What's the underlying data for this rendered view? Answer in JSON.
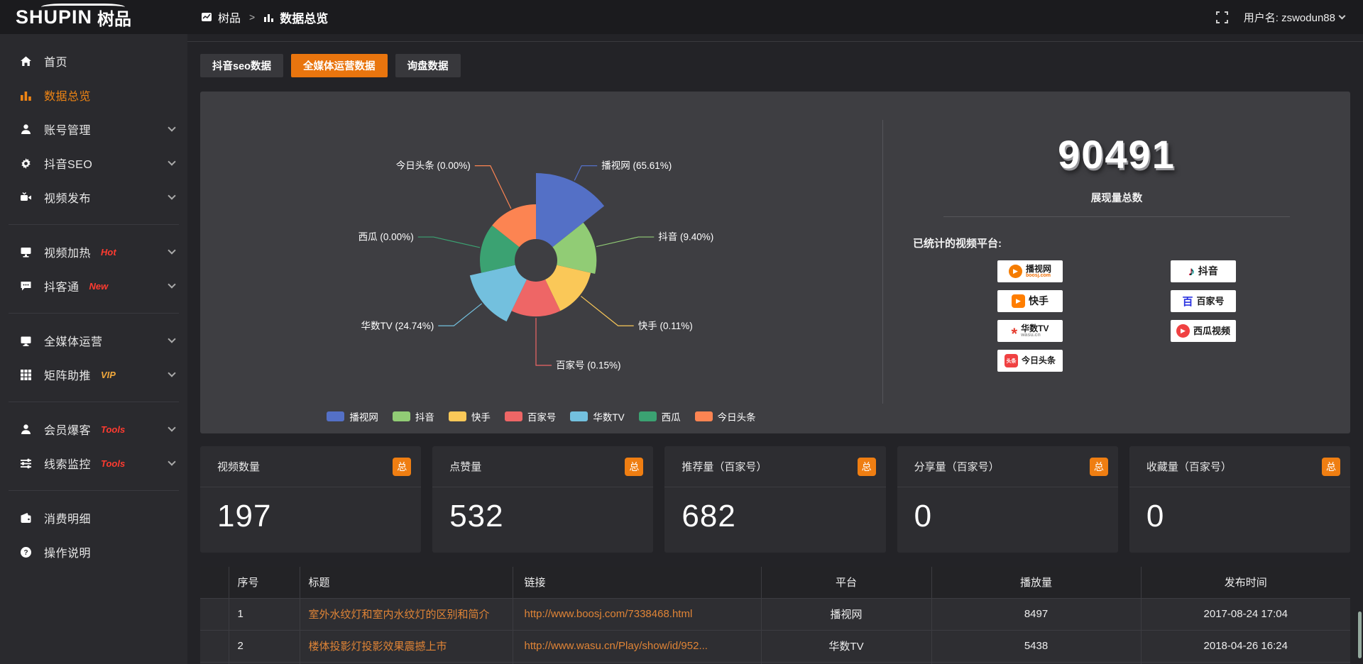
{
  "accent": "#ee7b17",
  "topbar": {
    "logo_main": "SHUPIN",
    "logo_suffix": "树品",
    "breadcrumb": {
      "root": "树品",
      "sep": ">",
      "current": "数据总览"
    },
    "user_label": "用户名: zswodun88"
  },
  "sidebar": {
    "items": [
      {
        "label": "首页"
      },
      {
        "label": "数据总览"
      },
      {
        "label": "账号管理"
      },
      {
        "label": "抖音SEO"
      },
      {
        "label": "视频发布"
      },
      {
        "label": "视频加热",
        "badge": "Hot"
      },
      {
        "label": "抖客通",
        "badge": "New"
      },
      {
        "label": "全媒体运营"
      },
      {
        "label": "矩阵助推",
        "badge": "VIP"
      },
      {
        "label": "会员爆客",
        "badge": "Tools"
      },
      {
        "label": "线索监控",
        "badge": "Tools"
      },
      {
        "label": "消费明细"
      },
      {
        "label": "操作说明"
      }
    ]
  },
  "tabs": {
    "items": [
      {
        "label": "抖音seo数据"
      },
      {
        "label": "全媒体运营数据"
      },
      {
        "label": "询盘数据"
      }
    ],
    "active_index": 1
  },
  "chart_data": {
    "type": "pie",
    "subtype": "nightingale-rose",
    "series": [
      {
        "name": "播视网",
        "value": 65.61,
        "color": "#5470c6"
      },
      {
        "name": "抖音",
        "value": 9.4,
        "color": "#91cc75"
      },
      {
        "name": "快手",
        "value": 0.11,
        "color": "#fac858"
      },
      {
        "name": "百家号",
        "value": 0.15,
        "color": "#ee6666"
      },
      {
        "name": "华数TV",
        "value": 24.74,
        "color": "#73c0de"
      },
      {
        "name": "西瓜",
        "value": 0.0,
        "color": "#3ba272"
      },
      {
        "name": "今日头条",
        "value": 0.0,
        "color": "#fc8452"
      }
    ],
    "unit": "%",
    "label_format": "{name} ({value}%)",
    "legend_position": "bottom",
    "grid": false
  },
  "summary": {
    "total": "90491",
    "total_label": "展现量总数",
    "platforms_label": "已统计的视频平台:",
    "platforms": [
      {
        "name": "播视网",
        "sub": "boosj.com"
      },
      {
        "name": "抖音",
        "sub": ""
      },
      {
        "name": "快手",
        "sub": ""
      },
      {
        "name": "百家号",
        "sub": ""
      },
      {
        "name": "华数TV",
        "sub": "wasu.cn"
      },
      {
        "name": "西瓜视频",
        "sub": ""
      },
      {
        "name": "今日头条",
        "sub": ""
      }
    ]
  },
  "stats": {
    "badge": "总",
    "cards": [
      {
        "title": "视频数量",
        "value": "197"
      },
      {
        "title": "点赞量",
        "value": "532"
      },
      {
        "title": "推荐量（百家号）",
        "value": "682"
      },
      {
        "title": "分享量（百家号）",
        "value": "0"
      },
      {
        "title": "收藏量（百家号）",
        "value": "0"
      }
    ]
  },
  "table": {
    "headers": [
      "序号",
      "标题",
      "链接",
      "平台",
      "播放量",
      "发布时间"
    ],
    "rows": [
      {
        "num": "1",
        "title": "室外水纹灯和室内水纹灯的区别和简介",
        "link": "http://www.boosj.com/7338468.html",
        "platform": "播视网",
        "plays": "8497",
        "time": "2017-08-24 17:04"
      },
      {
        "num": "2",
        "title": "楼体投影灯投影效果震撼上市",
        "link": "http://www.wasu.cn/Play/show/id/952...",
        "platform": "华数TV",
        "plays": "5438",
        "time": "2018-04-26 16:24"
      }
    ]
  }
}
